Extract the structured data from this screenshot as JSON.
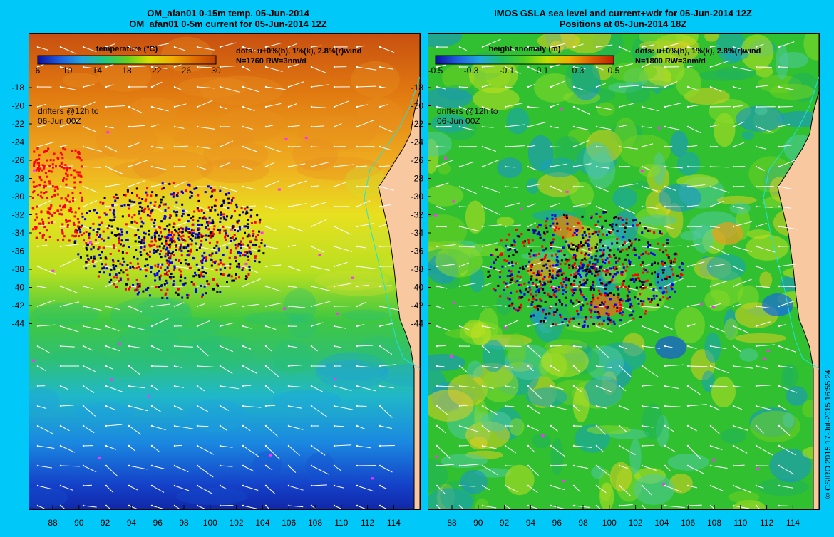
{
  "left_panel": {
    "title_line1": "OM_afan01 0-15m temp. 05-Jun-2014",
    "title_line2": "OM_afan01 0-5m current for 05-Jun-2014 12Z",
    "colorbar_title": "temperature (°C)",
    "colorbar_ticks": [
      "6",
      "10",
      "14",
      "18",
      "22",
      "26",
      "30"
    ],
    "colorbar_colors": [
      "#1010a0",
      "#1e5fe0",
      "#20a8e0",
      "#20c880",
      "#60d020",
      "#d8e000",
      "#f0b000",
      "#e07000",
      "#c04000"
    ],
    "legend_line1": "dots: u+0%(b), 1%(k), 2.8%(r)wind",
    "legend_line2": "N=1760 RW=3nm/d",
    "drifter_note_line1": "drifters @12h to",
    "drifter_note_line2": "06-Jun 00Z"
  },
  "right_panel": {
    "title_line1": "IMOS GSLA sea level and current+wdr for 05-Jun-2014 12Z",
    "title_line2": "Positions at 05-Jun-2014 18Z",
    "colorbar_title": "height anomaly (m)",
    "colorbar_ticks": [
      "-0.5",
      "-0.3",
      "-0.1",
      "0.1",
      "0.3",
      "0.5"
    ],
    "colorbar_colors": [
      "#1010a0",
      "#1e5fe0",
      "#20a8e0",
      "#20c060",
      "#50d020",
      "#c0e000",
      "#f0b000",
      "#e06000",
      "#c02000"
    ],
    "legend_line1": "dots: u+0%(b), 1%(k), 2.8%(r)wind",
    "legend_line2": "N=1800 RW=3nm/d",
    "drifter_note_line1": "drifters @12h to",
    "drifter_note_line2": "06-Jun 00Z"
  },
  "axes": {
    "lat_ticks": [
      "-18",
      "-20",
      "-22",
      "-24",
      "-26",
      "-28",
      "-30",
      "-32",
      "-34",
      "-36",
      "-38",
      "-40",
      "-42",
      "-44"
    ],
    "lon_ticks": [
      "88",
      "90",
      "92",
      "94",
      "96",
      "98",
      "100",
      "102",
      "104",
      "106",
      "108",
      "110",
      "112",
      "114"
    ]
  },
  "credit": "© CSIRO 2015   17-Jul-2015 16:55:24",
  "colors": {
    "background": "#00c8f8",
    "land": "#f8c8a0",
    "current_arrows": "#ffffff",
    "drifter_red": "#ff0000",
    "drifter_black": "#000000",
    "drifter_blue": "#0000ff",
    "marker_magenta": "#ff30ff"
  }
}
